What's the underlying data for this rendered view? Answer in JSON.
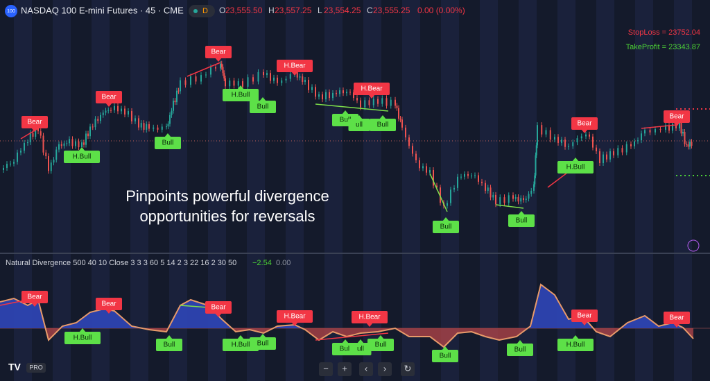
{
  "header": {
    "logo": "100",
    "symbol": "NASDAQ 100 E-mini Futures · 45 · CME",
    "badge": "D",
    "ohlc": [
      {
        "label": "O",
        "value": "23,555.50"
      },
      {
        "label": "H",
        "value": "23,557.25"
      },
      {
        "label": "L",
        "value": "23,554.25"
      },
      {
        "label": "C",
        "value": "23,555.25"
      }
    ],
    "change": "0.00 (0.00%)"
  },
  "levels": {
    "stop_loss": "StopLoss = 23752.04",
    "take_profit": "TakeProfit = 23343.87"
  },
  "annotation": [
    "Pinpoints powerful divergence",
    "opportunities for reversals"
  ],
  "main_labels": [
    "Bear",
    "H.Bull",
    "Bear",
    "Bull",
    "Bear",
    "H.Bull",
    "Bull",
    "H.Bear",
    "H.Bear",
    "Bull",
    "ull",
    "Bull",
    "Bull",
    "Bull",
    "Bear",
    "H.Bull",
    "Bear"
  ],
  "indicator": {
    "title": "Natural Divergence 500 40 10 Close 3 3 3 60 5 14 2 3 22 16 2 30 50",
    "value1": "−2.54",
    "value2": "0.00",
    "labels": [
      "Bear",
      "H.Bull",
      "Bear",
      "Bull",
      "Bear",
      "H.Bull",
      "Bull",
      "H.Bear",
      "H.Bear",
      "Bull",
      "ull",
      "Bull",
      "Bull",
      "Bull",
      "Bear",
      "H.Bull",
      "Bear"
    ]
  },
  "toolbar": {
    "buttons": [
      "−",
      "+",
      "‹",
      "›",
      "↻"
    ]
  },
  "brand": {
    "mark": "TV",
    "tier": "PRO"
  }
}
